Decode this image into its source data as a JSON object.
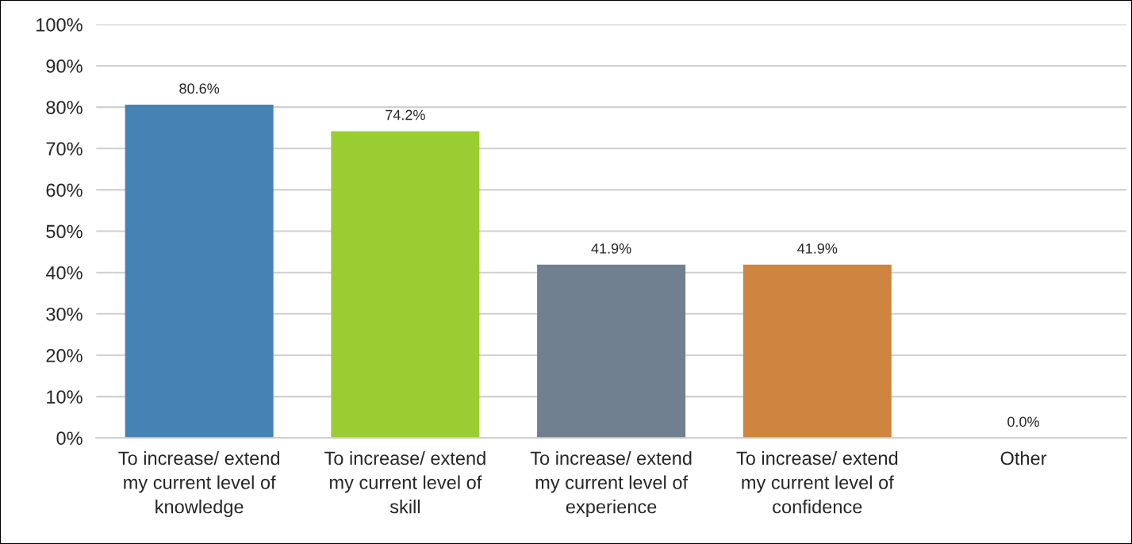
{
  "chart_data": {
    "type": "bar",
    "categories": [
      "To increase/ extend\nmy current level of\nknowledge",
      "To increase/ extend\nmy current level of\nskill",
      "To increase/ extend\nmy current level of\nexperience",
      "To increase/ extend\nmy current level of\nconfidence",
      "Other"
    ],
    "values": [
      80.6,
      74.2,
      41.9,
      41.9,
      0.0
    ],
    "colors": [
      "#4682b4",
      "#9acd32",
      "#708090",
      "#cd853f",
      "#4682b4"
    ],
    "value_labels": [
      "80.6%",
      "74.2%",
      "41.9%",
      "41.9%",
      "0.0%"
    ],
    "ylim": [
      0,
      100
    ],
    "yticks": [
      {
        "value": 0,
        "label": "0%"
      },
      {
        "value": 10,
        "label": "10%"
      },
      {
        "value": 20,
        "label": "20%"
      },
      {
        "value": 30,
        "label": "30%"
      },
      {
        "value": 40,
        "label": "40%"
      },
      {
        "value": 50,
        "label": "50%"
      },
      {
        "value": 60,
        "label": "60%"
      },
      {
        "value": 70,
        "label": "70%"
      },
      {
        "value": 80,
        "label": "80%"
      },
      {
        "value": 90,
        "label": "90%"
      },
      {
        "value": 100,
        "label": "100%"
      }
    ],
    "grid": "y",
    "legend": false
  }
}
